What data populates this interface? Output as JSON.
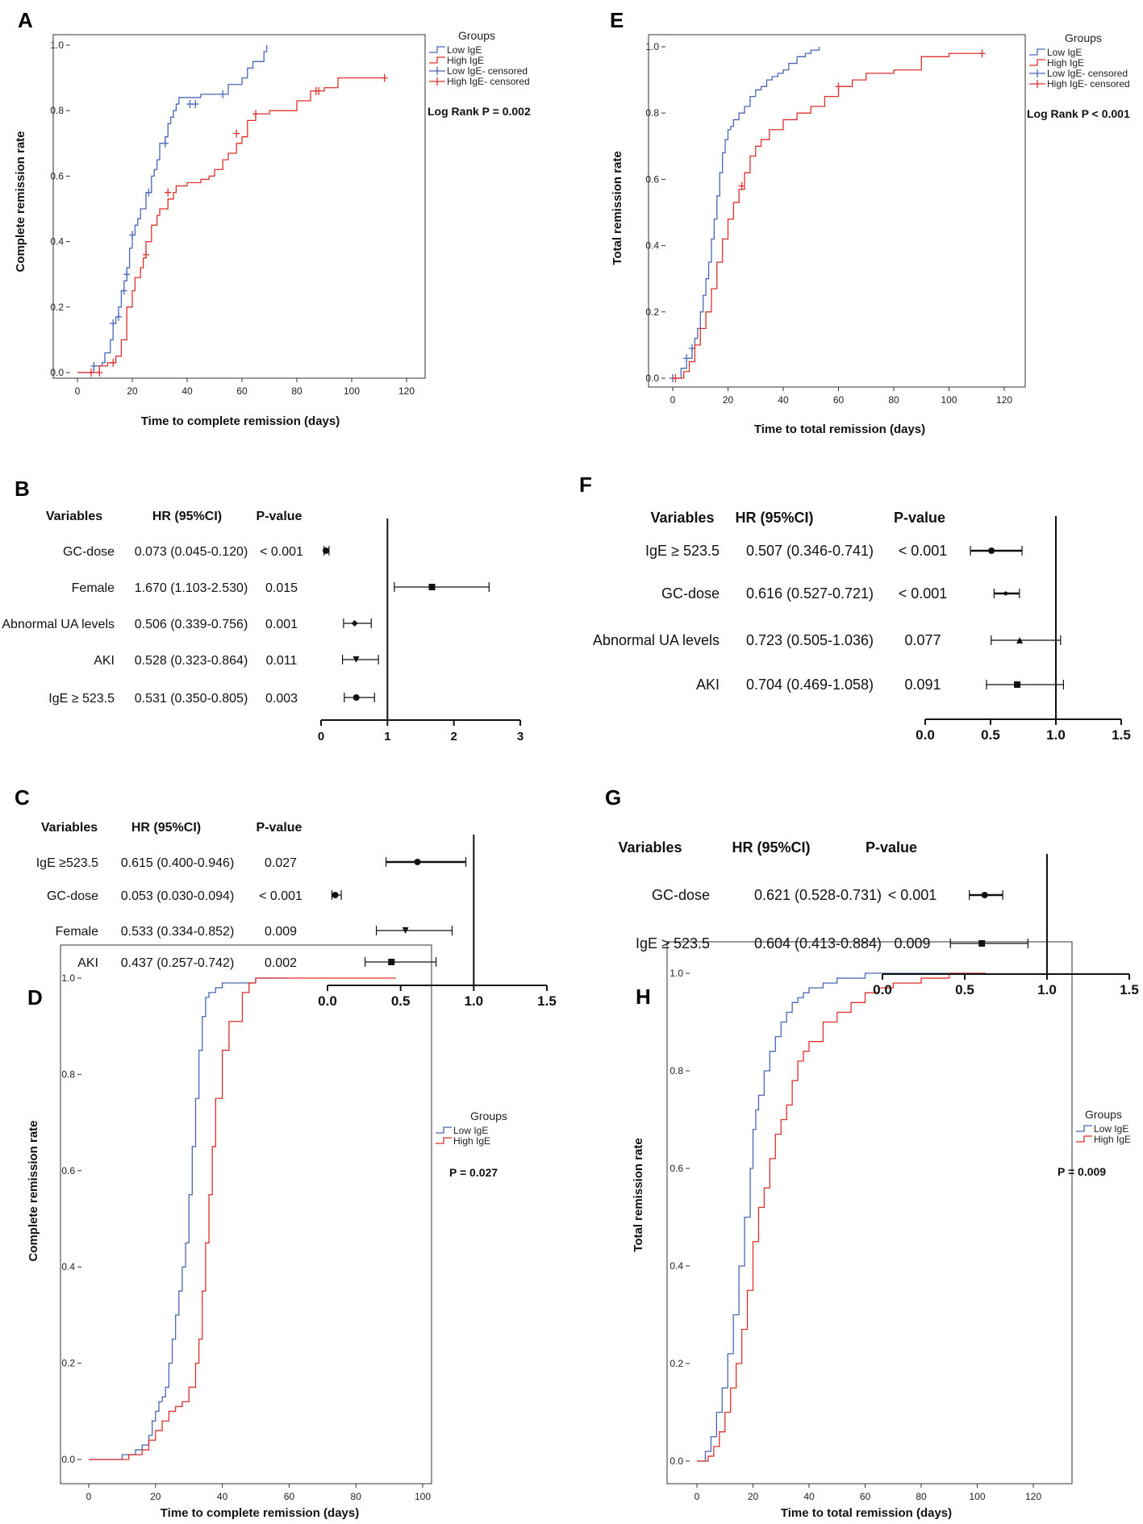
{
  "chart_data": [
    {
      "panel": "A",
      "type": "line",
      "title": "",
      "xlabel": "Time to complete remission (days)",
      "ylabel": "Complete remission rate",
      "xlim": [
        0,
        120
      ],
      "ylim": [
        0,
        1.0
      ],
      "xticks": [
        "0",
        "20",
        "40",
        "60",
        "80",
        "100",
        "120"
      ],
      "yticks": [
        "0.0",
        "0.2",
        "0.4",
        "0.6",
        "0.8",
        "1.0"
      ],
      "legend_title": "Groups",
      "legend": [
        "Low IgE",
        "High IgE",
        "Low IgE- censored",
        "High IgE- censored"
      ],
      "stat": "Log Rank P = 0.002",
      "colors": {
        "low": "#4a67b8",
        "high": "#e0302b"
      },
      "series": [
        {
          "name": "Low IgE",
          "x": [
            0,
            6,
            9,
            10,
            12,
            13,
            14,
            15,
            16,
            17,
            18,
            19,
            20,
            21,
            22,
            23,
            25,
            27,
            28,
            29,
            30,
            32,
            33,
            34,
            35,
            36,
            37,
            40,
            45,
            50,
            55,
            60,
            62,
            64,
            66,
            68,
            69
          ],
          "y": [
            0,
            0.02,
            0.03,
            0.06,
            0.1,
            0.15,
            0.17,
            0.2,
            0.25,
            0.28,
            0.32,
            0.38,
            0.42,
            0.45,
            0.47,
            0.5,
            0.55,
            0.6,
            0.62,
            0.65,
            0.7,
            0.72,
            0.76,
            0.78,
            0.8,
            0.82,
            0.84,
            0.84,
            0.85,
            0.85,
            0.88,
            0.9,
            0.93,
            0.95,
            0.95,
            0.98,
            1.0
          ],
          "censored": [
            [
              6,
              0.02
            ],
            [
              13,
              0.15
            ],
            [
              15,
              0.17
            ],
            [
              17,
              0.25
            ],
            [
              18,
              0.3
            ],
            [
              20,
              0.42
            ],
            [
              26,
              0.55
            ],
            [
              32,
              0.7
            ],
            [
              41,
              0.82
            ],
            [
              43,
              0.82
            ],
            [
              53,
              0.85
            ]
          ]
        },
        {
          "name": "High IgE",
          "x": [
            0,
            8,
            11,
            14,
            16,
            18,
            20,
            21,
            23,
            24,
            25,
            27,
            29,
            30,
            33,
            35,
            36,
            40,
            42,
            45,
            48,
            50,
            53,
            55,
            58,
            60,
            62,
            65,
            70,
            75,
            80,
            85,
            90,
            95,
            100,
            112
          ],
          "y": [
            0,
            0.02,
            0.03,
            0.05,
            0.1,
            0.2,
            0.25,
            0.29,
            0.32,
            0.35,
            0.4,
            0.45,
            0.48,
            0.5,
            0.53,
            0.55,
            0.57,
            0.58,
            0.58,
            0.59,
            0.6,
            0.62,
            0.65,
            0.67,
            0.7,
            0.72,
            0.77,
            0.79,
            0.8,
            0.8,
            0.83,
            0.86,
            0.87,
            0.9,
            0.9,
            0.9
          ],
          "censored": [
            [
              5,
              0
            ],
            [
              8,
              0
            ],
            [
              13,
              0.03
            ],
            [
              25,
              0.36
            ],
            [
              33,
              0.55
            ],
            [
              58,
              0.73
            ],
            [
              65,
              0.79
            ],
            [
              87,
              0.86
            ],
            [
              88,
              0.86
            ],
            [
              112,
              0.9
            ]
          ]
        }
      ]
    },
    {
      "panel": "E",
      "type": "line",
      "title": "",
      "xlabel": "Time to total remission (days)",
      "ylabel": "Total remission rate",
      "xlim": [
        0,
        120
      ],
      "ylim": [
        0,
        1.0
      ],
      "xticks": [
        "0",
        "20",
        "40",
        "60",
        "80",
        "100",
        "120"
      ],
      "yticks": [
        "0.0",
        "0.2",
        "0.4",
        "0.6",
        "0.8",
        "1.0"
      ],
      "legend_title": "Groups",
      "legend": [
        "Low IgE",
        "High IgE",
        "Low IgE- censored",
        "High IgE- censored"
      ],
      "stat": "Log Rank P < 0.001",
      "colors": {
        "low": "#4a67b8",
        "high": "#e0302b"
      },
      "series": [
        {
          "name": "Low IgE",
          "x": [
            0,
            3,
            5,
            7,
            8,
            9,
            10,
            11,
            12,
            13,
            14,
            15,
            16,
            17,
            18,
            19,
            20,
            21,
            22,
            24,
            26,
            28,
            30,
            32,
            34,
            36,
            38,
            40,
            42,
            45,
            48,
            50,
            53
          ],
          "y": [
            0,
            0.03,
            0.06,
            0.09,
            0.12,
            0.15,
            0.2,
            0.25,
            0.3,
            0.35,
            0.42,
            0.48,
            0.55,
            0.62,
            0.68,
            0.72,
            0.75,
            0.76,
            0.78,
            0.8,
            0.82,
            0.85,
            0.87,
            0.88,
            0.9,
            0.91,
            0.92,
            0.93,
            0.95,
            0.97,
            0.98,
            0.99,
            1.0
          ],
          "censored": [
            [
              0,
              0
            ],
            [
              5,
              0.06
            ],
            [
              7,
              0.09
            ]
          ]
        },
        {
          "name": "High IgE",
          "x": [
            0,
            4,
            6,
            8,
            10,
            12,
            14,
            16,
            18,
            20,
            22,
            24,
            26,
            28,
            30,
            32,
            35,
            40,
            45,
            50,
            55,
            60,
            65,
            70,
            80,
            90,
            100,
            105,
            112
          ],
          "y": [
            0,
            0.02,
            0.05,
            0.1,
            0.15,
            0.2,
            0.27,
            0.35,
            0.42,
            0.48,
            0.53,
            0.57,
            0.62,
            0.67,
            0.7,
            0.72,
            0.75,
            0.78,
            0.8,
            0.82,
            0.85,
            0.88,
            0.9,
            0.92,
            0.93,
            0.97,
            0.98,
            0.98,
            0.98
          ],
          "censored": [
            [
              1,
              0
            ],
            [
              25,
              0.58
            ],
            [
              60,
              0.88
            ],
            [
              112,
              0.98
            ]
          ]
        }
      ]
    },
    {
      "panel": "B",
      "type": "forest",
      "headers": {
        "variables": "Variables",
        "hr": "HR (95%CI)",
        "p": "P-value"
      },
      "rows": [
        {
          "variable": "GC-dose",
          "hr_text": "0.073 (0.045-0.120)",
          "p": "< 0.001",
          "hr": 0.073,
          "lo": 0.045,
          "hi": 0.12,
          "marker": "circle"
        },
        {
          "variable": "Female",
          "hr_text": "1.670 (1.103-2.530)",
          "p": "0.015",
          "hr": 1.67,
          "lo": 1.103,
          "hi": 2.53,
          "marker": "square"
        },
        {
          "variable": "Abnormal UA levels",
          "hr_text": "0.506 (0.339-0.756)",
          "p": "0.001",
          "hr": 0.506,
          "lo": 0.339,
          "hi": 0.756,
          "marker": "diamond"
        },
        {
          "variable": "AKI",
          "hr_text": "0.528 (0.323-0.864)",
          "p": "0.011",
          "hr": 0.528,
          "lo": 0.323,
          "hi": 0.864,
          "marker": "triangle-down"
        },
        {
          "variable": "IgE ≥ 523.5",
          "hr_text": "0.531 (0.350-0.805)",
          "p": "0.003",
          "hr": 0.531,
          "lo": 0.35,
          "hi": 0.805,
          "marker": "circle"
        }
      ],
      "xlim": [
        0,
        3
      ],
      "xticks": [
        "0",
        "1",
        "2",
        "3"
      ],
      "reference": 1
    },
    {
      "panel": "F",
      "type": "forest",
      "headers": {
        "variables": "Variables",
        "hr": "HR (95%CI)",
        "p": "P-value"
      },
      "rows": [
        {
          "variable": "IgE ≥ 523.5",
          "hr_text": "0.507 (0.346-0.741)",
          "p": "< 0.001",
          "hr": 0.507,
          "lo": 0.346,
          "hi": 0.741,
          "marker": "circle"
        },
        {
          "variable": "GC-dose",
          "hr_text": "0.616 (0.527-0.721)",
          "p": "< 0.001",
          "hr": 0.616,
          "lo": 0.527,
          "hi": 0.721,
          "marker": "star"
        },
        {
          "variable": "Abnormal UA levels",
          "hr_text": "0.723 (0.505-1.036)",
          "p": "0.077",
          "hr": 0.723,
          "lo": 0.505,
          "hi": 1.036,
          "marker": "triangle"
        },
        {
          "variable": "AKI",
          "hr_text": "0.704 (0.469-1.058)",
          "p": "0.091",
          "hr": 0.704,
          "lo": 0.469,
          "hi": 1.058,
          "marker": "square"
        }
      ],
      "xlim": [
        0,
        1.5
      ],
      "xticks": [
        "0.0",
        "0.5",
        "1.0",
        "1.5"
      ],
      "reference": 1.0
    },
    {
      "panel": "C",
      "type": "forest",
      "headers": {
        "variables": "Variables",
        "hr": "HR (95%CI)",
        "p": "P-value"
      },
      "rows": [
        {
          "variable": "IgE ≥523.5",
          "hr_text": "0.615 (0.400-0.946)",
          "p": "0.027",
          "hr": 0.615,
          "lo": 0.4,
          "hi": 0.946,
          "marker": "circle"
        },
        {
          "variable": "GC-dose",
          "hr_text": "0.053 (0.030-0.094)",
          "p": "< 0.001",
          "hr": 0.053,
          "lo": 0.03,
          "hi": 0.094,
          "marker": "circle"
        },
        {
          "variable": "Female",
          "hr_text": "0.533 (0.334-0.852)",
          "p": "0.009",
          "hr": 0.533,
          "lo": 0.334,
          "hi": 0.852,
          "marker": "triangle-down"
        },
        {
          "variable": "AKI",
          "hr_text": "0.437 (0.257-0.742)",
          "p": "0.002",
          "hr": 0.437,
          "lo": 0.257,
          "hi": 0.742,
          "marker": "square"
        }
      ],
      "xlim": [
        0,
        1.5
      ],
      "xticks": [
        "0.0",
        "0.5",
        "1.0",
        "1.5"
      ],
      "reference": 1.0
    },
    {
      "panel": "G",
      "type": "forest",
      "headers": {
        "variables": "Variables",
        "hr": "HR (95%CI)",
        "p": "P-value"
      },
      "rows": [
        {
          "variable": "GC-dose",
          "hr_text": "0.621 (0.528-0.731)",
          "p": "< 0.001",
          "hr": 0.621,
          "lo": 0.528,
          "hi": 0.731,
          "marker": "circle"
        },
        {
          "variable": "IgE ≥ 523.5",
          "hr_text": "0.604 (0.413-0.884)",
          "p": "0.009",
          "hr": 0.604,
          "lo": 0.413,
          "hi": 0.884,
          "marker": "square"
        }
      ],
      "xlim": [
        0,
        1.5
      ],
      "xticks": [
        "0.0",
        "0.5",
        "1.0",
        "1.5"
      ],
      "reference": 1.0
    },
    {
      "panel": "D",
      "type": "line",
      "title": "",
      "xlabel": "Time to complete remission (days)",
      "ylabel": "Complete remission rate",
      "xlim": [
        0,
        100
      ],
      "ylim": [
        0,
        1.0
      ],
      "xticks": [
        "0",
        "20",
        "40",
        "60",
        "80",
        "100"
      ],
      "yticks": [
        "0.0",
        "0.2",
        "0.4",
        "0.6",
        "0.8",
        "1.0"
      ],
      "legend_title": "Groups",
      "legend": [
        "Low IgE",
        "High IgE"
      ],
      "stat": "P = 0.027",
      "colors": {
        "low": "#4a67b8",
        "high": "#e0302b"
      },
      "series": [
        {
          "name": "Low IgE",
          "x": [
            0,
            10,
            14,
            16,
            18,
            19,
            20,
            21,
            22,
            23,
            24,
            25,
            26,
            27,
            28,
            29,
            30,
            31,
            32,
            33,
            34,
            35,
            36,
            38,
            40,
            45,
            50,
            55,
            60
          ],
          "y": [
            0,
            0.01,
            0.02,
            0.03,
            0.05,
            0.08,
            0.1,
            0.12,
            0.13,
            0.15,
            0.2,
            0.25,
            0.3,
            0.35,
            0.4,
            0.45,
            0.55,
            0.65,
            0.75,
            0.85,
            0.92,
            0.96,
            0.97,
            0.98,
            0.99,
            0.99,
            1.0,
            1.0,
            1.0
          ],
          "censored": []
        },
        {
          "name": "High IgE",
          "x": [
            0,
            12,
            16,
            18,
            20,
            22,
            24,
            26,
            28,
            30,
            32,
            33,
            34,
            35,
            36,
            37,
            38,
            40,
            42,
            44,
            46,
            48,
            50,
            60,
            80,
            92
          ],
          "y": [
            0,
            0.01,
            0.02,
            0.04,
            0.06,
            0.08,
            0.1,
            0.11,
            0.12,
            0.15,
            0.2,
            0.25,
            0.35,
            0.45,
            0.55,
            0.65,
            0.75,
            0.85,
            0.91,
            0.91,
            0.97,
            0.99,
            1.0,
            1.0,
            1.0,
            1.0
          ],
          "censored": []
        }
      ]
    },
    {
      "panel": "H",
      "type": "line",
      "title": "",
      "xlabel": "Time to total remission (days)",
      "ylabel": "Total remission rate",
      "xlim": [
        0,
        120
      ],
      "ylim": [
        0,
        1.0
      ],
      "xticks": [
        "0",
        "20",
        "40",
        "60",
        "80",
        "100",
        "120"
      ],
      "yticks": [
        "0.0",
        "0.2",
        "0.4",
        "0.6",
        "0.8",
        "1.0"
      ],
      "legend_title": "Groups",
      "legend": [
        "Low IgE",
        "High IgE"
      ],
      "stat": "P = 0.009",
      "colors": {
        "low": "#4a67b8",
        "high": "#e0302b"
      },
      "series": [
        {
          "name": "Low IgE",
          "x": [
            0,
            3,
            5,
            7,
            9,
            11,
            13,
            15,
            17,
            19,
            20,
            21,
            22,
            24,
            26,
            28,
            30,
            32,
            34,
            36,
            38,
            40,
            45,
            50,
            55,
            60,
            70,
            80,
            90,
            103
          ],
          "y": [
            0,
            0.02,
            0.05,
            0.1,
            0.15,
            0.22,
            0.3,
            0.4,
            0.5,
            0.6,
            0.68,
            0.72,
            0.75,
            0.8,
            0.84,
            0.87,
            0.9,
            0.92,
            0.94,
            0.95,
            0.96,
            0.97,
            0.98,
            0.99,
            0.99,
            1.0,
            1.0,
            1.0,
            1.0,
            1.0
          ],
          "censored": []
        },
        {
          "name": "High IgE",
          "x": [
            0,
            4,
            6,
            8,
            10,
            12,
            14,
            16,
            18,
            20,
            22,
            24,
            26,
            28,
            30,
            32,
            34,
            36,
            38,
            40,
            45,
            50,
            55,
            60,
            65,
            70,
            80,
            90,
            103
          ],
          "y": [
            0,
            0.01,
            0.03,
            0.06,
            0.1,
            0.15,
            0.2,
            0.27,
            0.35,
            0.45,
            0.52,
            0.56,
            0.62,
            0.67,
            0.7,
            0.73,
            0.78,
            0.82,
            0.84,
            0.86,
            0.9,
            0.92,
            0.94,
            0.96,
            0.97,
            0.98,
            0.99,
            1.0,
            1.0
          ],
          "censored": []
        }
      ]
    }
  ]
}
